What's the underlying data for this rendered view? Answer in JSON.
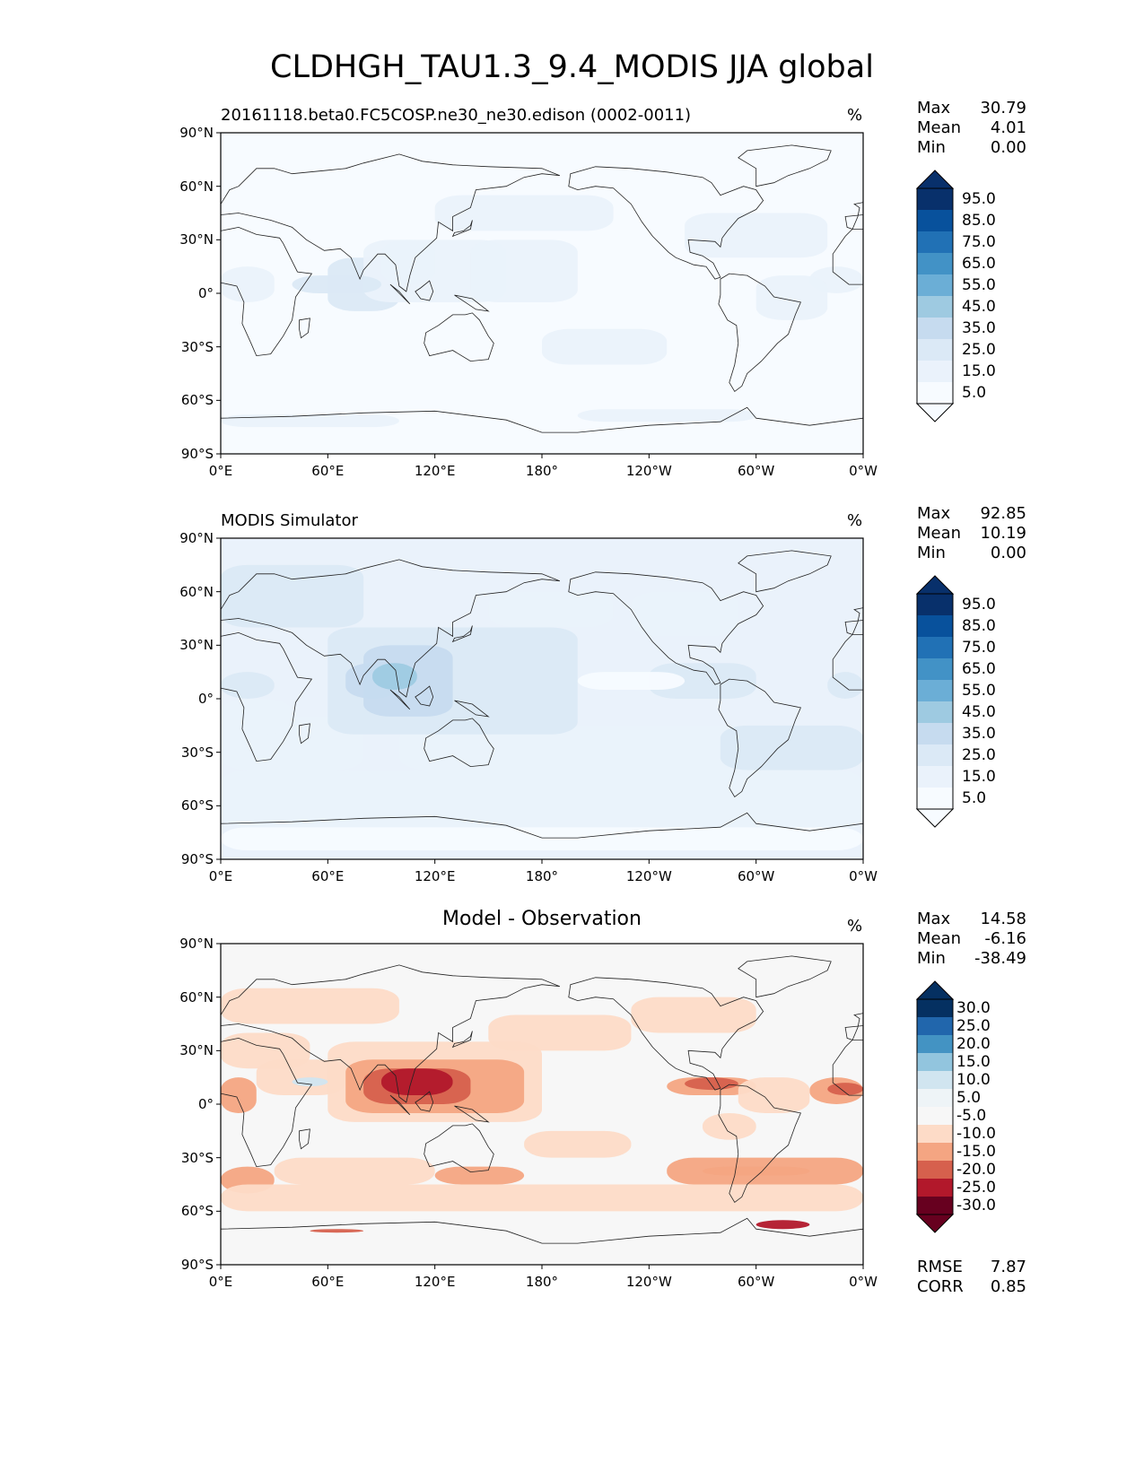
{
  "title": "CLDHGH_TAU1.3_9.4_MODIS JJA global",
  "lat_ticks": [
    "90°N",
    "60°N",
    "30°N",
    "0°",
    "30°S",
    "60°S",
    "90°S"
  ],
  "lon_ticks": [
    "0°E",
    "60°E",
    "120°E",
    "180°",
    "120°W",
    "60°W",
    "0°W"
  ],
  "stat_labels": {
    "max": "Max",
    "mean": "Mean",
    "min": "Min"
  },
  "panels": [
    {
      "title": "20161118.beta0.FC5COSP.ne30_ne30.edison (0002-0011)",
      "title_style": "left",
      "unit": "%",
      "stats": {
        "max": "30.79",
        "mean": "4.01",
        "min": "0.00"
      },
      "colorbar": {
        "labels": [
          "95.0",
          "85.0",
          "75.0",
          "65.0",
          "55.0",
          "45.0",
          "35.0",
          "25.0",
          "15.0",
          "5.0"
        ],
        "colors": [
          "#08306b",
          "#08519c",
          "#2171b5",
          "#4292c6",
          "#6baed6",
          "#9ecae1",
          "#c6dbef",
          "#dbe9f6",
          "#eaf2fb",
          "#f7fbff"
        ]
      }
    },
    {
      "title": "MODIS Simulator",
      "title_style": "left",
      "unit": "%",
      "stats": {
        "max": "92.85",
        "mean": "10.19",
        "min": "0.00"
      },
      "colorbar": {
        "labels": [
          "95.0",
          "85.0",
          "75.0",
          "65.0",
          "55.0",
          "45.0",
          "35.0",
          "25.0",
          "15.0",
          "5.0"
        ],
        "colors": [
          "#08306b",
          "#08519c",
          "#2171b5",
          "#4292c6",
          "#6baed6",
          "#9ecae1",
          "#c6dbef",
          "#dbe9f6",
          "#eaf2fb",
          "#f7fbff"
        ]
      }
    },
    {
      "title": "Model - Observation",
      "title_style": "center",
      "unit": "%",
      "stats": {
        "max": "14.58",
        "mean": "-6.16",
        "min": "-38.49"
      },
      "colorbar": {
        "labels": [
          "30.0",
          "25.0",
          "20.0",
          "15.0",
          "10.0",
          "5.0",
          "-5.0",
          "-10.0",
          "-15.0",
          "-20.0",
          "-25.0",
          "-30.0"
        ],
        "colors": [
          "#053061",
          "#2166ac",
          "#4393c3",
          "#92c5de",
          "#d1e5f0",
          "#eef4f7",
          "#f7f7f7",
          "#fddbc7",
          "#f4a582",
          "#d6604d",
          "#b2182b",
          "#67001f"
        ]
      },
      "error_stats": {
        "rmse_label": "RMSE",
        "rmse": "7.87",
        "corr_label": "CORR",
        "corr": "0.85"
      }
    }
  ],
  "chart_data": [
    {
      "type": "heatmap",
      "title": "20161118.beta0.FC5COSP.ne30_ne30.edison (0002-0011)",
      "variable": "CLDHGH_TAU1.3_9.4_MODIS",
      "season": "JJA",
      "unit": "%",
      "x_ticks": [
        "0°E",
        "60°E",
        "120°E",
        "180°",
        "120°W",
        "60°W",
        "0°W"
      ],
      "y_ticks": [
        "90°N",
        "60°N",
        "30°N",
        "0°",
        "30°S",
        "60°S",
        "90°S"
      ],
      "xlim": [
        0,
        360
      ],
      "ylim": [
        -90,
        90
      ],
      "stats": {
        "max": 30.79,
        "mean": 4.01,
        "min": 0.0
      },
      "contour_levels": [
        5,
        15,
        25,
        35,
        45,
        55,
        65,
        75,
        85,
        95
      ]
    },
    {
      "type": "heatmap",
      "title": "MODIS Simulator",
      "variable": "CLDHGH_TAU1.3_9.4_MODIS",
      "season": "JJA",
      "unit": "%",
      "x_ticks": [
        "0°E",
        "60°E",
        "120°E",
        "180°",
        "120°W",
        "60°W",
        "0°W"
      ],
      "y_ticks": [
        "90°N",
        "60°N",
        "30°N",
        "0°",
        "30°S",
        "60°S",
        "90°S"
      ],
      "xlim": [
        0,
        360
      ],
      "ylim": [
        -90,
        90
      ],
      "stats": {
        "max": 92.85,
        "mean": 10.19,
        "min": 0.0
      },
      "contour_levels": [
        5,
        15,
        25,
        35,
        45,
        55,
        65,
        75,
        85,
        95
      ]
    },
    {
      "type": "heatmap",
      "title": "Model - Observation",
      "variable": "CLDHGH_TAU1.3_9.4_MODIS",
      "season": "JJA",
      "unit": "%",
      "x_ticks": [
        "0°E",
        "60°E",
        "120°E",
        "180°",
        "120°W",
        "60°W",
        "0°W"
      ],
      "y_ticks": [
        "90°N",
        "60°N",
        "30°N",
        "0°",
        "30°S",
        "60°S",
        "90°S"
      ],
      "xlim": [
        0,
        360
      ],
      "ylim": [
        -90,
        90
      ],
      "stats": {
        "max": 14.58,
        "mean": -6.16,
        "min": -38.49
      },
      "rmse": 7.87,
      "corr": 0.85,
      "contour_levels": [
        -30,
        -25,
        -20,
        -15,
        -10,
        -5,
        5,
        10,
        15,
        20,
        25,
        30
      ]
    }
  ]
}
